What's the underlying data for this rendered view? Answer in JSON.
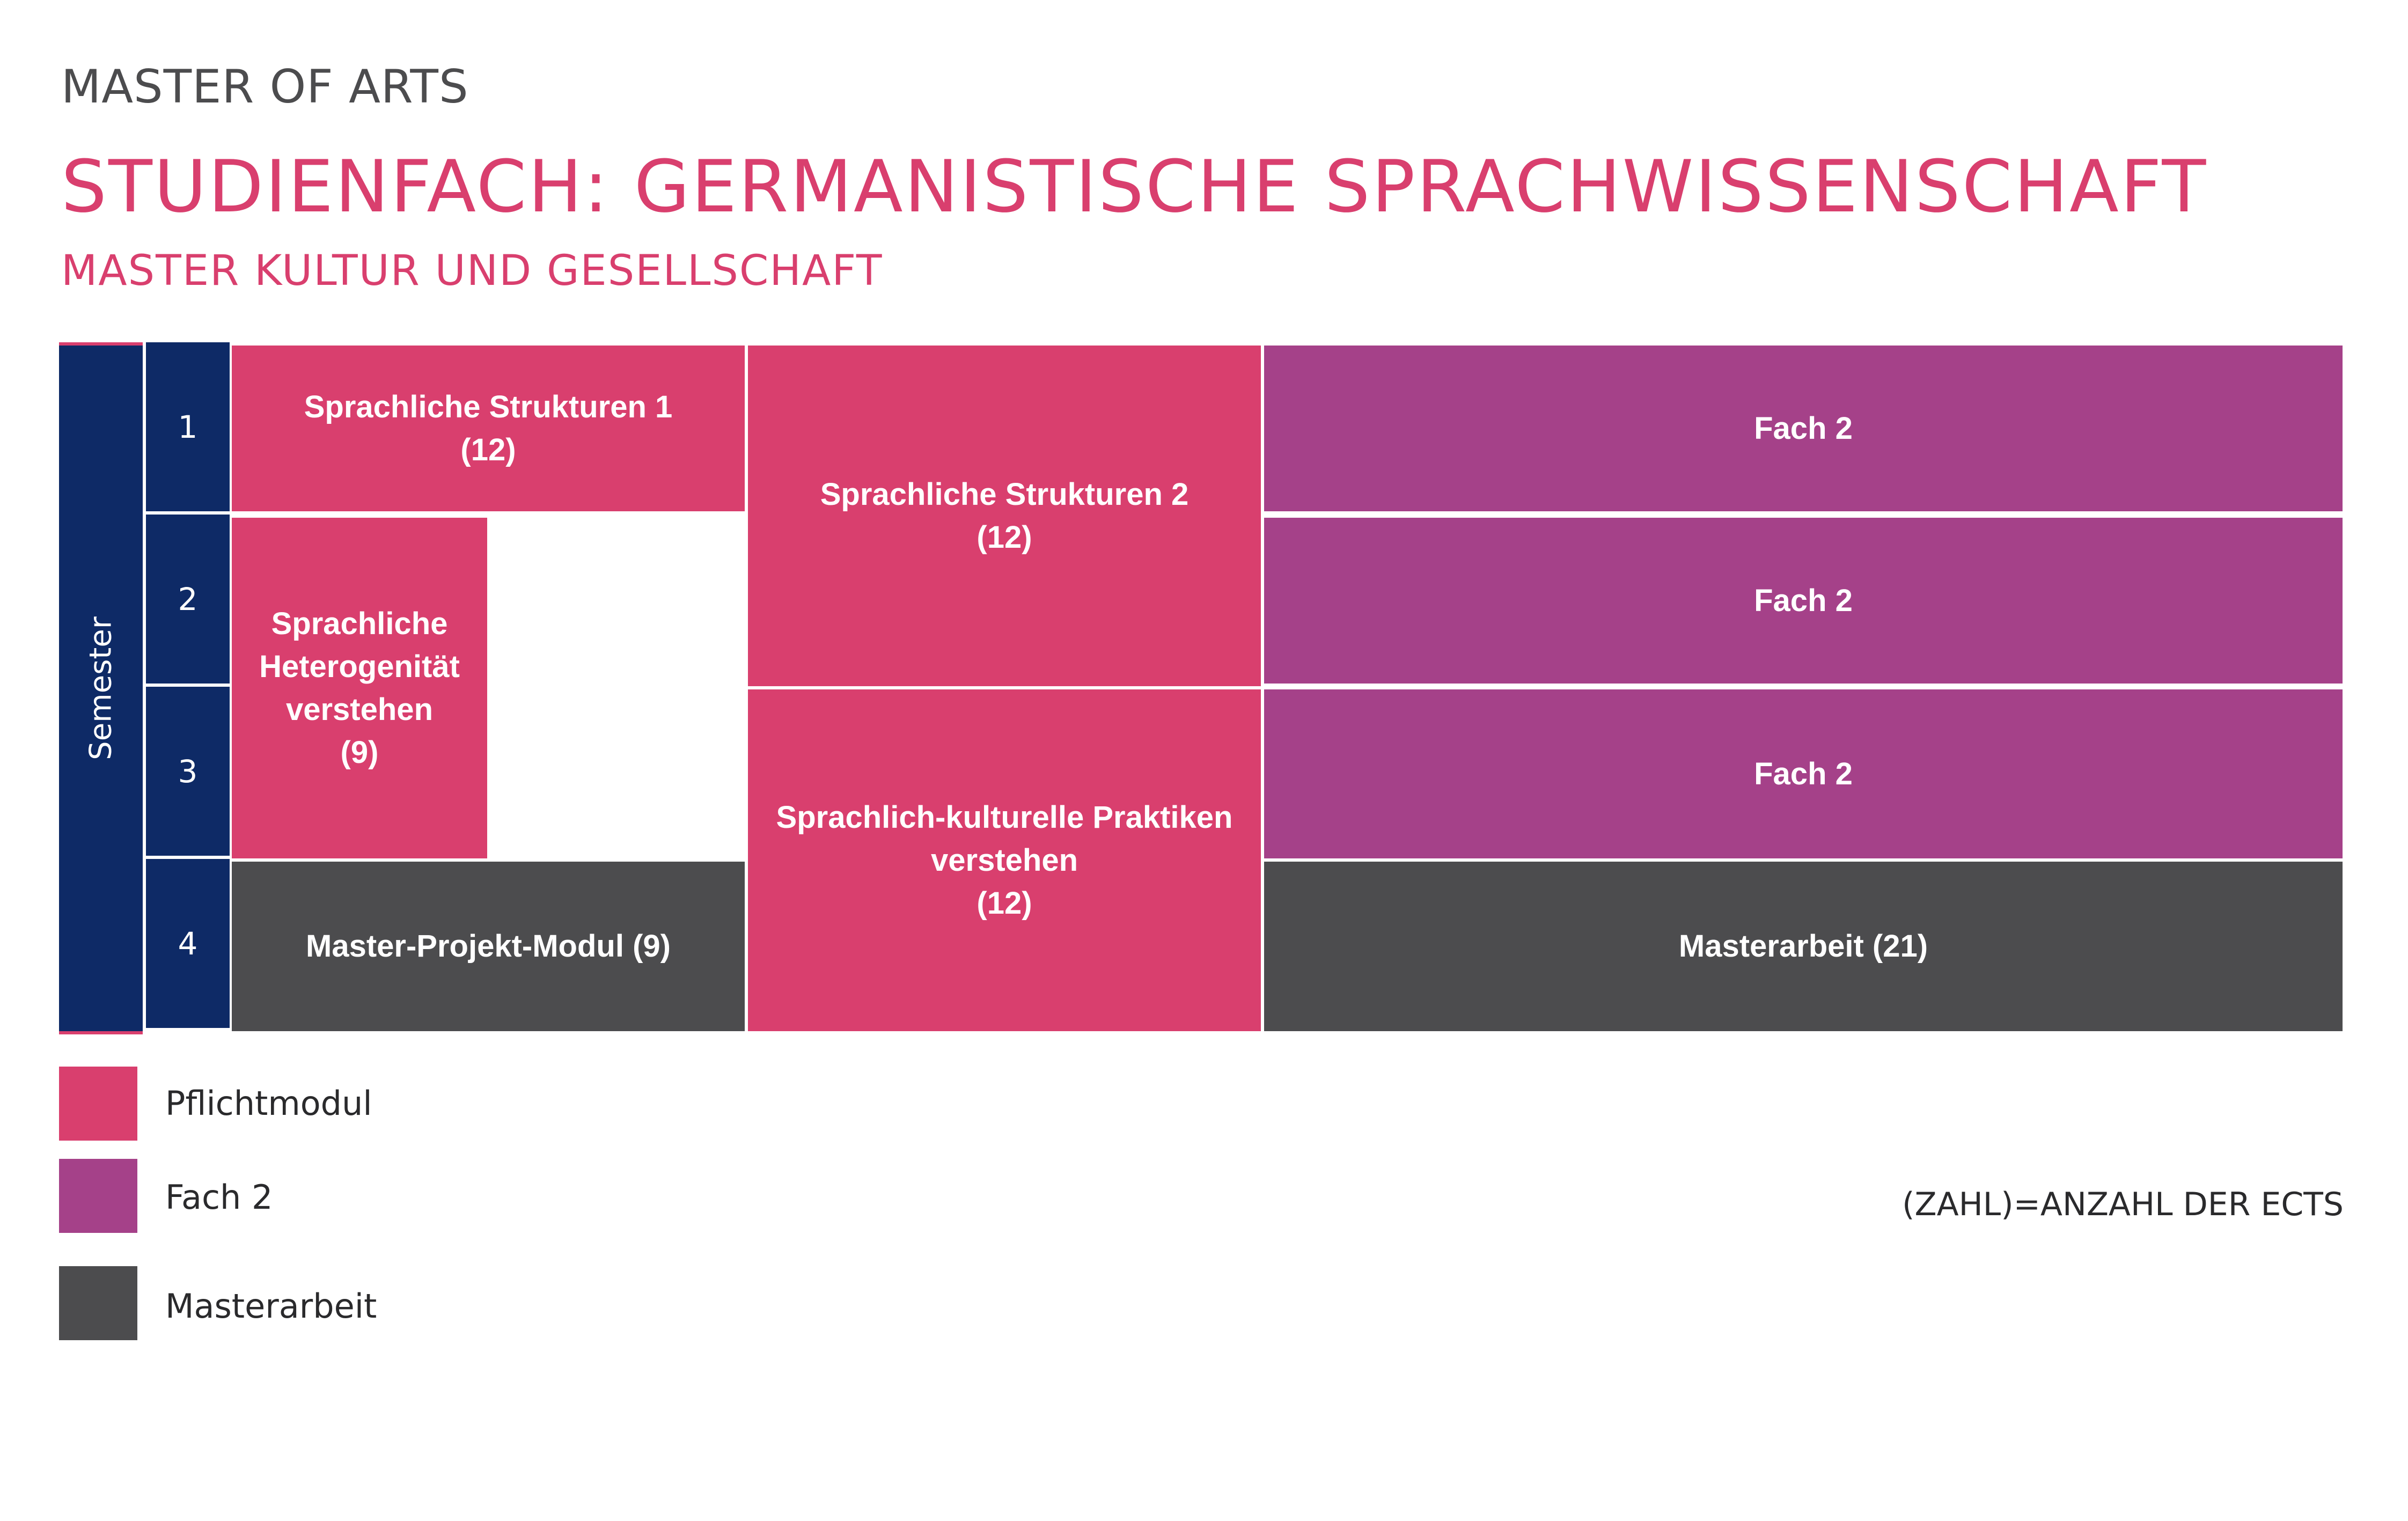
{
  "header": {
    "degree": "MASTER OF ARTS",
    "title": "STUDIENFACH: GERMANISTISCHE SPRACHWISSENSCHAFT",
    "subtitle": "MASTER KULTUR UND GESELLSCHAFT"
  },
  "semester_axis": {
    "label": "Semester",
    "numbers": [
      "1",
      "2",
      "3",
      "4"
    ]
  },
  "modules": {
    "sprachliche_strukturen_1": {
      "name": "Sprachliche Strukturen 1",
      "ects": "(12)"
    },
    "sprachliche_heterogenitaet": {
      "name_lines": [
        "Sprachliche",
        "Heterogenität",
        "verstehen"
      ],
      "ects": "(9)"
    },
    "master_projekt_modul": {
      "name": "Master-Projekt-Modul (9)"
    },
    "sprachliche_strukturen_2": {
      "name": "Sprachliche Strukturen 2",
      "ects": "(12)"
    },
    "sprachlich_kulturelle_praktiken": {
      "name_lines": [
        "Sprachlich-kulturelle Praktiken",
        "verstehen"
      ],
      "ects": "(12)"
    },
    "fach2_sem1": {
      "name": "Fach 2"
    },
    "fach2_sem2": {
      "name": "Fach 2"
    },
    "fach2_sem3": {
      "name": "Fach 2"
    },
    "masterarbeit": {
      "name": "Masterarbeit (21)"
    }
  },
  "legend": {
    "items": [
      {
        "label": "Pflichtmodul",
        "color": "#d93f6e"
      },
      {
        "label": "Fach 2",
        "color": "#a54189"
      },
      {
        "label": "Masterarbeit",
        "color": "#4c4c4e"
      }
    ],
    "note": "(ZAHL)=ANZAHL DER ECTS"
  },
  "colors": {
    "pflichtmodul": "#d93f6e",
    "fach2": "#a54189",
    "masterarbeit": "#4c4c4e",
    "semester": "#0e2a66"
  }
}
